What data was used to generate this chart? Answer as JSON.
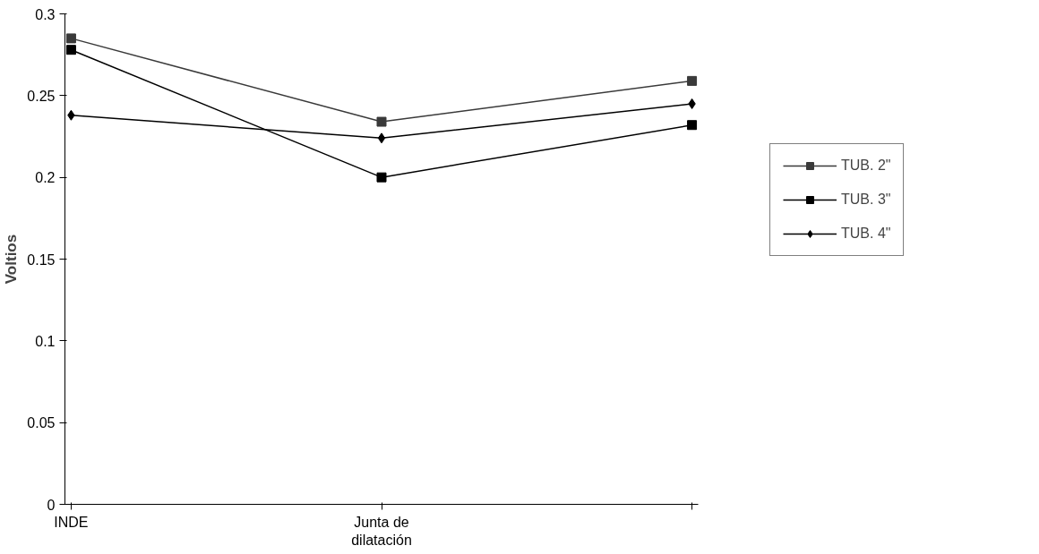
{
  "chart_data": {
    "type": "line",
    "ylabel": "Voltios",
    "categories": [
      "INDE",
      "Junta de\ndilatación",
      null
    ],
    "series": [
      {
        "name": "TUB. 2\"",
        "color": "#3a3a3a",
        "values": [
          0.285,
          0.234,
          0.259
        ]
      },
      {
        "name": "TUB. 3\"",
        "color": "#000000",
        "values": [
          0.278,
          0.2,
          0.232
        ]
      },
      {
        "name": "TUB. 4\"",
        "color": "#000000",
        "marker": "diamond",
        "values": [
          0.238,
          0.224,
          0.245
        ]
      }
    ],
    "marker": "square",
    "ylim": [
      0,
      0.3
    ],
    "yticks": [
      0,
      0.05,
      0.1,
      0.15,
      0.2,
      0.25,
      0.3
    ],
    "grid": false,
    "legend": "right",
    "line_style": "solid"
  }
}
